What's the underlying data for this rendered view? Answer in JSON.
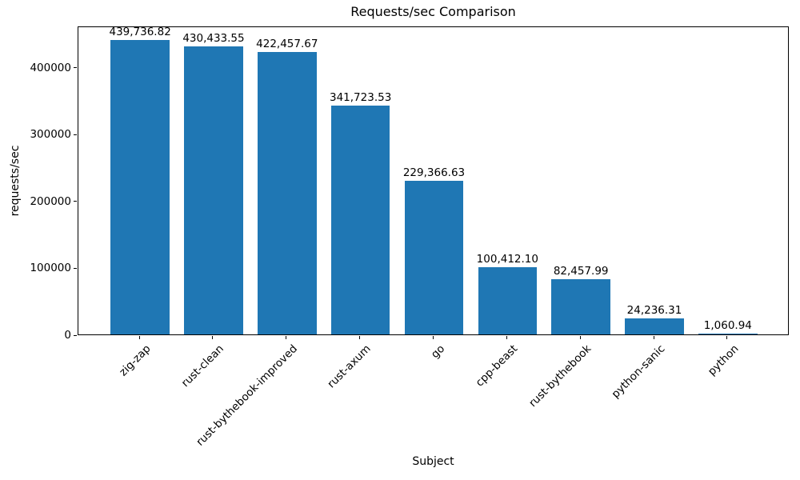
{
  "chart_data": {
    "type": "bar",
    "title": "Requests/sec Comparison",
    "xlabel": "Subject",
    "ylabel": "requests/sec",
    "categories": [
      "zig-zap",
      "rust-clean",
      "rust-bythebook-improved",
      "rust-axum",
      "go",
      "cpp-beast",
      "rust-bythebook",
      "python-sanic",
      "python"
    ],
    "values": [
      439736.82,
      430433.55,
      422457.67,
      341723.53,
      229366.63,
      100412.1,
      82457.99,
      24236.31,
      1060.94
    ],
    "value_labels": [
      "439,736.82",
      "430,433.55",
      "422,457.67",
      "341,723.53",
      "229,366.63",
      "100,412.10",
      "82,457.99",
      "24,236.31",
      "1,060.94"
    ],
    "yticks": [
      0,
      100000,
      200000,
      300000,
      400000
    ],
    "ytick_labels": [
      "0",
      "100000",
      "200000",
      "300000",
      "400000"
    ],
    "ylim": [
      0,
      461723.66
    ],
    "xtick_rotation_deg": 45,
    "bar_color": "#1f77b4",
    "grid": false,
    "legend": null
  }
}
